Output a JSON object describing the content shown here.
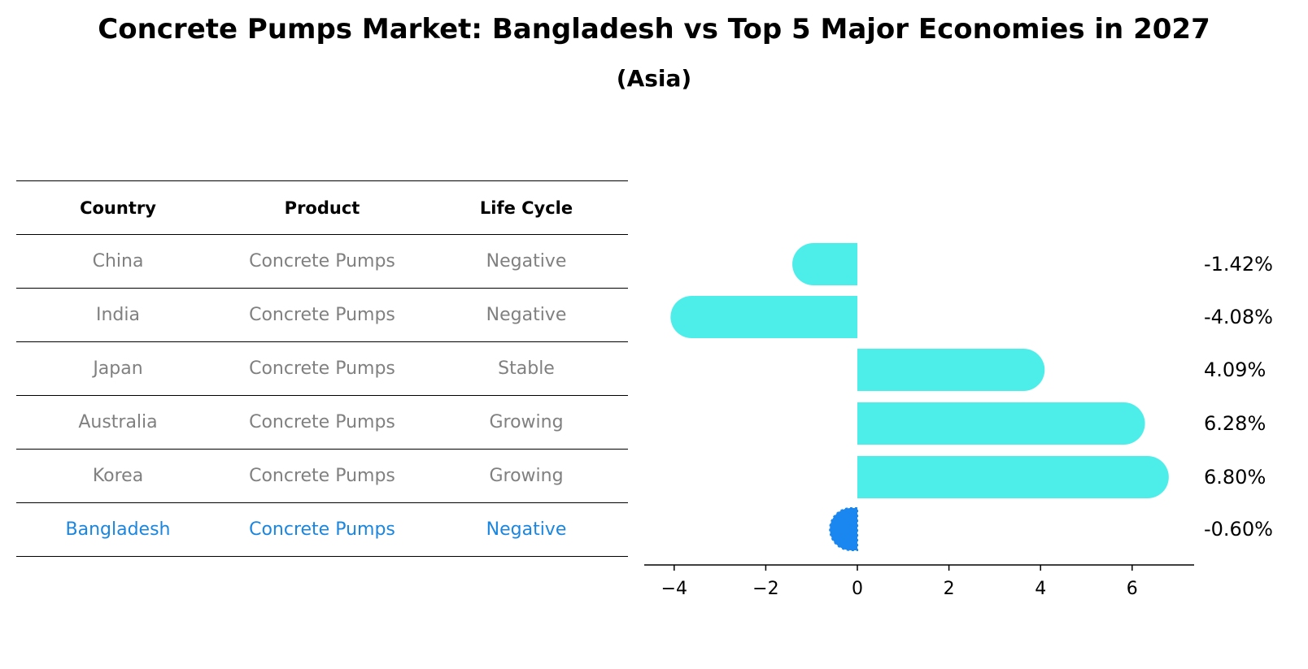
{
  "title": "Concrete Pumps Market: Bangladesh vs Top 5 Major Economies in 2027",
  "subtitle": "(Asia)",
  "table": {
    "headers": [
      "Country",
      "Product",
      "Life Cycle"
    ],
    "rows": [
      {
        "country": "China",
        "product": "Concrete Pumps",
        "life_cycle": "Negative"
      },
      {
        "country": "India",
        "product": "Concrete Pumps",
        "life_cycle": "Negative"
      },
      {
        "country": "Japan",
        "product": "Concrete Pumps",
        "life_cycle": "Stable"
      },
      {
        "country": "Australia",
        "product": "Concrete Pumps",
        "life_cycle": "Growing"
      },
      {
        "country": "Korea",
        "product": "Concrete Pumps",
        "life_cycle": "Growing"
      },
      {
        "country": "Bangladesh",
        "product": "Concrete Pumps",
        "life_cycle": "Negative"
      }
    ]
  },
  "chart_data": {
    "type": "bar",
    "orientation": "horizontal",
    "categories": [
      "China",
      "India",
      "Japan",
      "Australia",
      "Korea",
      "Bangladesh"
    ],
    "values": [
      -1.42,
      -4.08,
      4.09,
      6.28,
      6.8,
      -0.6
    ],
    "value_labels": [
      "-1.42%",
      "-4.08%",
      "4.09%",
      "6.28%",
      "6.80%",
      "-0.60%"
    ],
    "highlight": "Bangladesh",
    "xlim": [
      -4.5,
      7.3
    ],
    "xticks": [
      -4,
      -2,
      0,
      2,
      4,
      6
    ],
    "xtick_labels": [
      "−4",
      "−2",
      "0",
      "2",
      "4",
      "6"
    ],
    "xlabel": "",
    "ylabel": "",
    "colors": {
      "default": "#4deeea",
      "highlight": "#1a86f0"
    }
  }
}
